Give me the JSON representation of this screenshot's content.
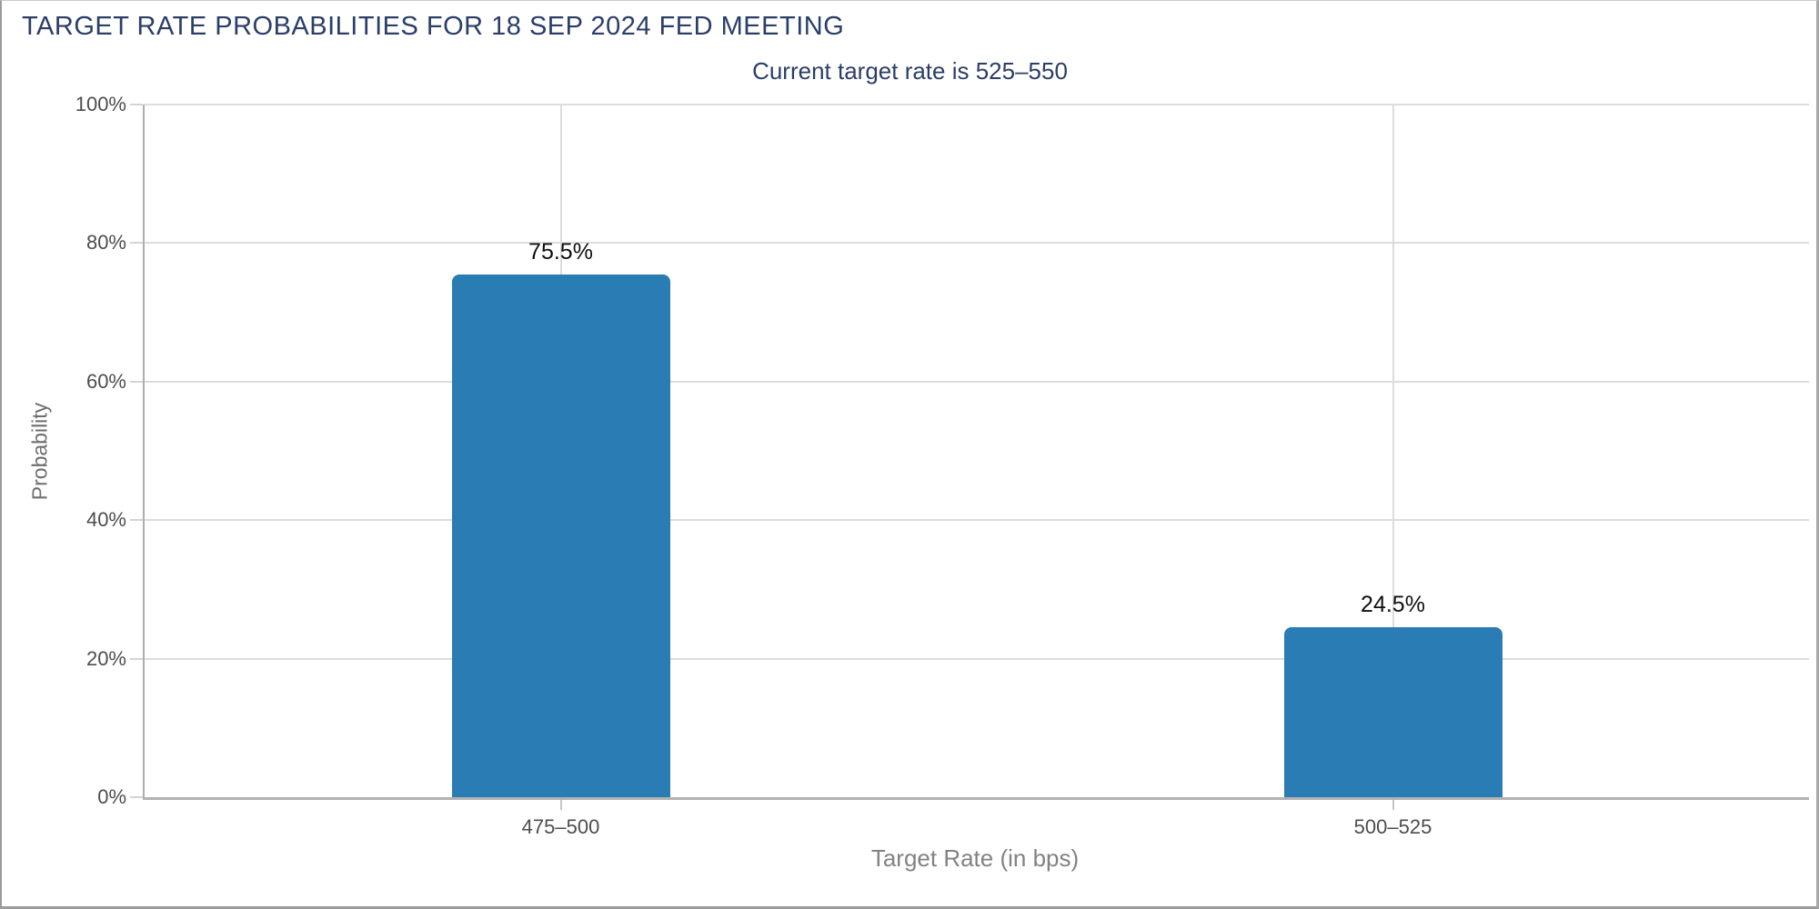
{
  "header": {
    "title": "TARGET RATE PROBABILITIES FOR 18 SEP 2024 FED MEETING",
    "subtitle": "Current target rate is 525–550"
  },
  "chart_data": {
    "type": "bar",
    "title": "TARGET RATE PROBABILITIES FOR 18 SEP 2024 FED MEETING",
    "subtitle": "Current target rate is 525–550",
    "categories": [
      "475–500",
      "500–525"
    ],
    "values": [
      75.5,
      24.5
    ],
    "value_labels": [
      "75.5%",
      "24.5%"
    ],
    "xlabel": "Target Rate (in bps)",
    "ylabel": "Probability",
    "ylim": [
      0,
      100
    ],
    "yticks": [
      0,
      20,
      40,
      60,
      80,
      100
    ],
    "ytick_labels": [
      "0%",
      "20%",
      "40%",
      "60%",
      "80%",
      "100%"
    ],
    "grid": true,
    "legend": "none",
    "colors": {
      "bar": "#2a7cb4",
      "title_text": "#2a3e68",
      "axis_text": "#4d4d4d",
      "gridline": "#dcdcdc",
      "value_label_text": "#0f0f0f"
    }
  }
}
